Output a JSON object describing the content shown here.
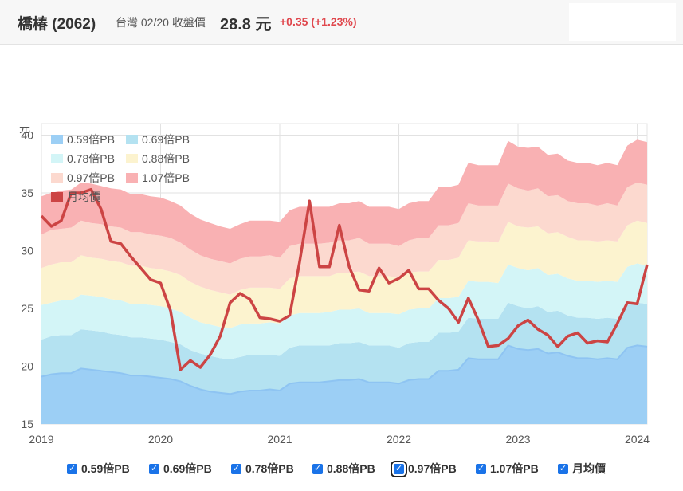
{
  "header": {
    "name": "橋椿 (2062)",
    "meta": "台灣 02/20 收盤價",
    "price": "28.8 元",
    "change": "+0.35 (+1.23%)"
  },
  "colors": {
    "band1": "#9ccff5",
    "band2": "#b4e2f1",
    "band3": "#d3f5f7",
    "band4": "#fcf3cf",
    "band5": "#fcd9cf",
    "band6": "#f9b1b3",
    "price_line": "#cc4444",
    "accent": "#1a73e8",
    "change": "#e0484e"
  },
  "chart_data": {
    "type": "area",
    "ylabel": "元",
    "ylim": [
      15,
      41
    ],
    "yticks": [
      15,
      20,
      25,
      30,
      35,
      40
    ],
    "xlim": [
      "2019-01",
      "2024-02"
    ],
    "xticks": [
      "2019",
      "2020",
      "2021",
      "2022",
      "2023",
      "2024"
    ],
    "grid": true,
    "legend_position": "top-left",
    "dates": [
      "2019-01",
      "2019-02",
      "2019-03",
      "2019-04",
      "2019-05",
      "2019-06",
      "2019-07",
      "2019-08",
      "2019-09",
      "2019-10",
      "2019-11",
      "2019-12",
      "2020-01",
      "2020-02",
      "2020-03",
      "2020-04",
      "2020-05",
      "2020-06",
      "2020-07",
      "2020-08",
      "2020-09",
      "2020-10",
      "2020-11",
      "2020-12",
      "2021-01",
      "2021-02",
      "2021-03",
      "2021-04",
      "2021-05",
      "2021-06",
      "2021-07",
      "2021-08",
      "2021-09",
      "2021-10",
      "2021-11",
      "2021-12",
      "2022-01",
      "2022-02",
      "2022-03",
      "2022-04",
      "2022-05",
      "2022-06",
      "2022-07",
      "2022-08",
      "2022-09",
      "2022-10",
      "2022-11",
      "2022-12",
      "2023-01",
      "2023-02",
      "2023-03",
      "2023-04",
      "2023-05",
      "2023-06",
      "2023-07",
      "2023-08",
      "2023-09",
      "2023-10",
      "2023-11",
      "2023-12",
      "2024-01",
      "2024-02"
    ],
    "series": [
      {
        "name": "0.59倍PB",
        "values": [
          19.1,
          19.3,
          19.4,
          19.4,
          19.8,
          19.7,
          19.6,
          19.5,
          19.4,
          19.2,
          19.2,
          19.1,
          19.0,
          18.9,
          18.7,
          18.3,
          18.0,
          17.8,
          17.7,
          17.6,
          17.8,
          17.9,
          17.9,
          18.0,
          17.9,
          18.5,
          18.6,
          18.6,
          18.6,
          18.7,
          18.8,
          18.8,
          18.9,
          18.6,
          18.6,
          18.6,
          18.5,
          18.8,
          18.9,
          18.9,
          19.6,
          19.6,
          19.7,
          20.7,
          20.6,
          20.6,
          20.6,
          21.8,
          21.5,
          21.4,
          21.5,
          21.1,
          21.2,
          20.9,
          20.7,
          20.7,
          20.6,
          20.7,
          20.6,
          21.6,
          21.8,
          21.7
        ]
      },
      {
        "name": "0.69倍PB",
        "values": [
          22.3,
          22.6,
          22.7,
          22.7,
          23.2,
          23.1,
          23.0,
          22.8,
          22.7,
          22.5,
          22.5,
          22.4,
          22.3,
          22.1,
          21.9,
          21.4,
          21.1,
          20.9,
          20.7,
          20.6,
          20.8,
          21.0,
          21.0,
          21.0,
          20.9,
          21.6,
          21.8,
          21.8,
          21.8,
          21.8,
          22.0,
          22.0,
          22.1,
          21.8,
          21.8,
          21.8,
          21.6,
          22.0,
          22.1,
          22.1,
          22.9,
          22.9,
          23.0,
          24.2,
          24.1,
          24.1,
          24.1,
          25.5,
          25.2,
          25.0,
          25.2,
          24.7,
          24.8,
          24.4,
          24.2,
          24.2,
          24.1,
          24.2,
          24.1,
          25.3,
          25.5,
          25.4
        ]
      },
      {
        "name": "0.78倍PB",
        "values": [
          25.3,
          25.5,
          25.7,
          25.7,
          26.2,
          26.1,
          26.0,
          25.8,
          25.7,
          25.4,
          25.4,
          25.3,
          25.2,
          25.0,
          24.7,
          24.2,
          23.8,
          23.6,
          23.4,
          23.3,
          23.6,
          23.7,
          23.7,
          23.8,
          23.7,
          24.4,
          24.6,
          24.6,
          24.6,
          24.7,
          24.9,
          24.9,
          25.0,
          24.6,
          24.6,
          24.6,
          24.5,
          24.9,
          25.0,
          25.0,
          25.9,
          25.9,
          26.0,
          27.4,
          27.3,
          27.3,
          27.2,
          28.8,
          28.5,
          28.3,
          28.5,
          27.9,
          28.0,
          27.6,
          27.4,
          27.4,
          27.3,
          27.4,
          27.3,
          28.6,
          28.9,
          28.7
        ]
      },
      {
        "name": "0.88倍PB",
        "values": [
          28.5,
          28.8,
          29.0,
          29.0,
          29.6,
          29.4,
          29.3,
          29.1,
          29.0,
          28.7,
          28.7,
          28.5,
          28.4,
          28.2,
          27.9,
          27.3,
          26.9,
          26.6,
          26.4,
          26.2,
          26.6,
          26.8,
          26.8,
          26.8,
          26.7,
          27.6,
          27.8,
          27.8,
          27.8,
          27.8,
          28.1,
          28.1,
          28.2,
          27.8,
          27.8,
          27.8,
          27.6,
          28.1,
          28.2,
          28.2,
          29.2,
          29.2,
          29.4,
          30.9,
          30.8,
          30.8,
          30.7,
          32.5,
          32.1,
          32.0,
          32.1,
          31.5,
          31.6,
          31.2,
          30.9,
          30.9,
          30.8,
          30.9,
          30.8,
          32.2,
          32.6,
          32.4
        ]
      },
      {
        "name": "0.97倍PB",
        "values": [
          31.4,
          31.8,
          31.9,
          32.0,
          32.6,
          32.4,
          32.3,
          32.1,
          32.0,
          31.6,
          31.6,
          31.4,
          31.3,
          31.1,
          30.7,
          30.1,
          29.6,
          29.3,
          29.1,
          28.9,
          29.3,
          29.5,
          29.5,
          29.6,
          29.4,
          30.4,
          30.6,
          30.6,
          30.6,
          30.7,
          30.9,
          30.9,
          31.1,
          30.6,
          30.6,
          30.6,
          30.4,
          30.9,
          31.1,
          31.1,
          32.2,
          32.2,
          32.4,
          34.1,
          33.9,
          33.9,
          33.9,
          35.8,
          35.4,
          35.2,
          35.4,
          34.7,
          34.8,
          34.3,
          34.1,
          34.1,
          33.9,
          34.1,
          33.9,
          35.5,
          35.9,
          35.7
        ]
      },
      {
        "name": "1.07倍PB",
        "values": [
          34.7,
          35.0,
          35.2,
          35.3,
          35.9,
          35.8,
          35.6,
          35.4,
          35.3,
          34.9,
          34.9,
          34.7,
          34.6,
          34.3,
          33.9,
          33.2,
          32.7,
          32.4,
          32.1,
          31.9,
          32.3,
          32.6,
          32.6,
          32.6,
          32.5,
          33.5,
          33.8,
          33.8,
          33.8,
          33.8,
          34.1,
          34.1,
          34.3,
          33.8,
          33.8,
          33.8,
          33.6,
          34.1,
          34.3,
          34.3,
          35.5,
          35.5,
          35.7,
          37.6,
          37.4,
          37.4,
          37.4,
          39.5,
          39.0,
          38.9,
          39.0,
          38.3,
          38.4,
          37.8,
          37.6,
          37.6,
          37.4,
          37.6,
          37.4,
          39.1,
          39.6,
          39.4
        ]
      },
      {
        "name": "月均價",
        "values": [
          33.0,
          32.1,
          32.6,
          35.0,
          35.0,
          35.3,
          33.6,
          30.8,
          30.6,
          29.5,
          28.5,
          27.5,
          27.2,
          24.8,
          19.7,
          20.5,
          19.9,
          21.0,
          22.6,
          25.5,
          26.3,
          25.8,
          24.2,
          24.1,
          23.9,
          24.4,
          29.0,
          34.3,
          28.6,
          28.6,
          32.2,
          28.6,
          26.6,
          26.5,
          28.5,
          27.2,
          27.6,
          28.3,
          26.7,
          26.7,
          25.7,
          25.0,
          23.8,
          25.9,
          24.0,
          21.7,
          21.8,
          22.4,
          23.5,
          24.0,
          23.2,
          22.7,
          21.7,
          22.6,
          22.9,
          22.0,
          22.2,
          22.1,
          23.7,
          25.5,
          25.4,
          28.8
        ]
      }
    ]
  },
  "legend_items": [
    {
      "label": "0.59倍PB"
    },
    {
      "label": "0.69倍PB"
    },
    {
      "label": "0.78倍PB"
    },
    {
      "label": "0.88倍PB"
    },
    {
      "label": "0.97倍PB"
    },
    {
      "label": "1.07倍PB"
    },
    {
      "label": "月均價"
    }
  ],
  "toggles": [
    {
      "label": "0.59倍PB",
      "checked": true
    },
    {
      "label": "0.69倍PB",
      "checked": true
    },
    {
      "label": "0.78倍PB",
      "checked": true
    },
    {
      "label": "0.88倍PB",
      "checked": true
    },
    {
      "label": "0.97倍PB",
      "checked": true
    },
    {
      "label": "1.07倍PB",
      "checked": true
    },
    {
      "label": "月均價",
      "checked": true
    }
  ]
}
